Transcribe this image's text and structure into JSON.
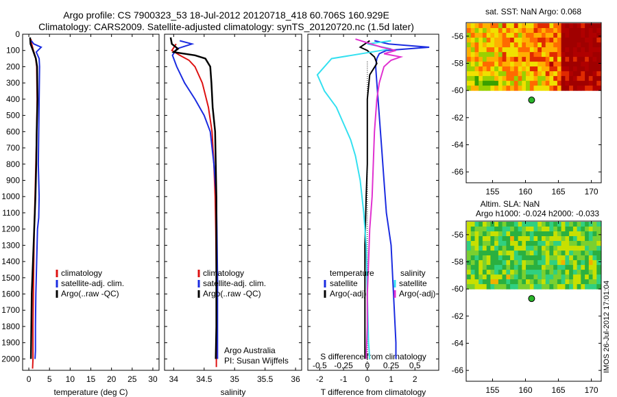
{
  "header": {
    "line1": "Argo profile: CS 7900323_53 18-Jul-2012 20120718_418 60.706S 160.929E",
    "line2": "Climatology: CARS2009. Satellite-adjusted climatology: synTS_20120720.nc (1.5d later)"
  },
  "colors": {
    "climatology": "#dd1111",
    "satellite": "#1a2be0",
    "argo": "#000000",
    "salinity_satellite": "#33e0f0",
    "salinity_argo": "#e030d0",
    "float_marker": "#2ab52a"
  },
  "depth_ticks": [
    "0",
    "100",
    "200",
    "300",
    "400",
    "500",
    "600",
    "700",
    "800",
    "900",
    "1000",
    "1100",
    "1200",
    "1300",
    "1400",
    "1500",
    "1600",
    "1700",
    "1800",
    "1900",
    "2000"
  ],
  "chart_data": [
    {
      "type": "line",
      "id": "temperature",
      "xlabel": "temperature (deg C)",
      "xlim": [
        -1.5,
        31.5
      ],
      "ylim": [
        2070,
        0
      ],
      "xticks": [
        "0",
        "5",
        "10",
        "15",
        "20",
        "25",
        "30"
      ],
      "legend": [
        "climatology",
        "satellite-adj. clim.",
        "Argo(..raw -QC)"
      ],
      "series": [
        {
          "name": "climatology",
          "points": [
            [
              0.5,
              30
            ],
            [
              0.7,
              60
            ],
            [
              1.1,
              100
            ],
            [
              1.6,
              140
            ],
            [
              1.9,
              200
            ],
            [
              2.0,
              400
            ],
            [
              1.9,
              600
            ],
            [
              1.7,
              800
            ],
            [
              1.5,
              1000
            ],
            [
              1.3,
              1200
            ],
            [
              1.2,
              1400
            ],
            [
              1.1,
              1600
            ],
            [
              1.0,
              1800
            ],
            [
              1.0,
              2000
            ],
            [
              0.9,
              2060
            ]
          ]
        },
        {
          "name": "satellite-adj. clim.",
          "points": [
            [
              0.6,
              40
            ],
            [
              1.2,
              60
            ],
            [
              3.0,
              80
            ],
            [
              1.8,
              110
            ],
            [
              2.5,
              150
            ],
            [
              2.6,
              200
            ],
            [
              2.5,
              400
            ],
            [
              2.4,
              600
            ],
            [
              2.3,
              800
            ],
            [
              2.5,
              1000
            ],
            [
              2.4,
              1130
            ],
            [
              2.1,
              1200
            ],
            [
              1.9,
              1400
            ],
            [
              1.7,
              1600
            ],
            [
              1.6,
              1800
            ],
            [
              1.6,
              1950
            ],
            [
              1.5,
              2000
            ]
          ]
        },
        {
          "name": "Argo(..raw -QC)",
          "points": [
            [
              0.3,
              20
            ],
            [
              0.4,
              60
            ],
            [
              1.0,
              100
            ],
            [
              1.7,
              150
            ],
            [
              2.0,
              200
            ],
            [
              2.1,
              400
            ],
            [
              1.9,
              600
            ],
            [
              1.8,
              800
            ],
            [
              1.6,
              1000
            ],
            [
              1.3,
              1200
            ],
            [
              1.0,
              1400
            ],
            [
              0.7,
              1600
            ],
            [
              0.6,
              1800
            ],
            [
              0.5,
              2000
            ]
          ]
        }
      ]
    },
    {
      "type": "line",
      "id": "salinity",
      "xlabel": "salinity",
      "xlim": [
        33.85,
        36.1
      ],
      "ylim": [
        2070,
        0
      ],
      "xticks": [
        "34",
        "34.5",
        "35",
        "35.5",
        "36"
      ],
      "legend": [
        "climatology",
        "satellite-adj. clim.",
        "Argo(..raw -QC)"
      ],
      "notes": [
        "Argo Australia",
        "PI: Susan Wijffels"
      ],
      "series": [
        {
          "name": "climatology",
          "points": [
            [
              34.04,
              60
            ],
            [
              33.97,
              100
            ],
            [
              34.1,
              130
            ],
            [
              34.25,
              160
            ],
            [
              34.35,
              200
            ],
            [
              34.47,
              300
            ],
            [
              34.57,
              450
            ],
            [
              34.63,
              600
            ],
            [
              34.66,
              800
            ],
            [
              34.68,
              1000
            ],
            [
              34.69,
              1200
            ],
            [
              34.7,
              1500
            ],
            [
              34.7,
              1800
            ],
            [
              34.7,
              2050
            ]
          ]
        },
        {
          "name": "satellite-adj. clim.",
          "points": [
            [
              34.1,
              40
            ],
            [
              34.3,
              60
            ],
            [
              34.05,
              90
            ],
            [
              33.98,
              130
            ],
            [
              34.05,
              200
            ],
            [
              34.18,
              300
            ],
            [
              34.35,
              400
            ],
            [
              34.5,
              500
            ],
            [
              34.6,
              600
            ],
            [
              34.66,
              800
            ],
            [
              34.7,
              1000
            ],
            [
              34.71,
              1200
            ],
            [
              34.72,
              1500
            ],
            [
              34.72,
              2000
            ]
          ]
        },
        {
          "name": "Argo(..raw -QC)",
          "points": [
            [
              33.95,
              20
            ],
            [
              33.97,
              60
            ],
            [
              34.07,
              90
            ],
            [
              34.0,
              110
            ],
            [
              34.35,
              130
            ],
            [
              34.52,
              150
            ],
            [
              34.6,
              200
            ],
            [
              34.62,
              300
            ],
            [
              34.64,
              450
            ],
            [
              34.68,
              600
            ],
            [
              34.69,
              800
            ],
            [
              34.7,
              1000
            ],
            [
              34.7,
              1200
            ],
            [
              34.7,
              1500
            ],
            [
              34.7,
              1800
            ],
            [
              34.69,
              2000
            ]
          ]
        }
      ]
    },
    {
      "type": "line",
      "id": "difference",
      "xlabel": "T difference from climatology",
      "top_label": "S difference from climatology",
      "xlim": [
        -2.5,
        3.0
      ],
      "ylim": [
        2070,
        0
      ],
      "xticks": [
        "-2",
        "-1",
        "0",
        "1",
        "2"
      ],
      "top_ticks": [
        "-0.5",
        "-0.25",
        "0",
        "0.25",
        "0.5"
      ],
      "legend_headers": [
        "temperature",
        "salinity"
      ],
      "legend_left": [
        "satellite",
        "Argo(-adj)"
      ],
      "legend_right": [
        "satellite",
        "Argo(-adj)"
      ],
      "series": [
        {
          "name": "temperature satellite",
          "points": [
            [
              0.3,
              40
            ],
            [
              0.9,
              60
            ],
            [
              2.6,
              80
            ],
            [
              0.8,
              100
            ],
            [
              0.5,
              120
            ],
            [
              0.4,
              150
            ],
            [
              0.35,
              200
            ],
            [
              0.4,
              300
            ],
            [
              0.5,
              500
            ],
            [
              0.6,
              700
            ],
            [
              0.7,
              900
            ],
            [
              0.8,
              1100
            ],
            [
              1.0,
              1300
            ],
            [
              1.1,
              1600
            ],
            [
              1.2,
              1900
            ],
            [
              1.2,
              2000
            ]
          ]
        },
        {
          "name": "temperature Argo(-adj)",
          "points": [
            [
              0.1,
              40
            ],
            [
              -0.1,
              60
            ],
            [
              -0.3,
              80
            ],
            [
              0.0,
              100
            ],
            [
              0.3,
              140
            ],
            [
              0.4,
              180
            ],
            [
              0.1,
              250
            ],
            [
              0.0,
              400
            ],
            [
              0.0,
              600
            ],
            [
              0.0,
              800
            ],
            [
              -0.05,
              1000
            ],
            [
              -0.1,
              1300
            ],
            [
              -0.1,
              1600
            ],
            [
              -0.1,
              1800
            ],
            [
              -0.1,
              2000
            ]
          ]
        },
        {
          "name": "salinity satellite",
          "points": [
            [
              1.0,
              40
            ],
            [
              0.0,
              60
            ],
            [
              1.0,
              90
            ],
            [
              -1.5,
              150
            ],
            [
              -2.1,
              250
            ],
            [
              -1.8,
              350
            ],
            [
              -1.3,
              450
            ],
            [
              -1.0,
              550
            ],
            [
              -0.7,
              650
            ],
            [
              -0.5,
              750
            ],
            [
              -0.3,
              900
            ],
            [
              -0.15,
              1100
            ],
            [
              -0.05,
              1300
            ],
            [
              0.0,
              1600
            ],
            [
              0.05,
              1900
            ],
            [
              0.1,
              2000
            ]
          ]
        },
        {
          "name": "salinity Argo(-adj)",
          "points": [
            [
              -0.5,
              30
            ],
            [
              0.6,
              80
            ],
            [
              1.2,
              100
            ],
            [
              0.7,
              120
            ],
            [
              1.4,
              140
            ],
            [
              1.0,
              160
            ],
            [
              0.7,
              200
            ],
            [
              0.5,
              300
            ],
            [
              0.4,
              400
            ],
            [
              0.3,
              600
            ],
            [
              0.25,
              800
            ],
            [
              0.2,
              1000
            ],
            [
              0.1,
              1200
            ],
            [
              0.05,
              1400
            ],
            [
              0.0,
              1600
            ],
            [
              0.0,
              1800
            ],
            [
              -0.05,
              2000
            ]
          ]
        }
      ]
    },
    {
      "type": "heatmap",
      "id": "sst_map",
      "title": "sat. SST: NaN Argo: 0.068",
      "xlim": [
        151,
        171.5
      ],
      "ylim": [
        -66.8,
        -55
      ],
      "xticks": [
        "155",
        "160",
        "165",
        "170"
      ],
      "yticks": [
        "-56",
        "-58",
        "-60",
        "-62",
        "-64",
        "-66"
      ],
      "grid_lat_range": [
        -60,
        -55
      ],
      "argo_position": [
        160.929,
        -60.706
      ]
    },
    {
      "type": "heatmap",
      "id": "sla_map",
      "title": "Altim. SLA: NaN",
      "subtitle": "Argo h1000: -0.024 h2000: -0.033",
      "xlim": [
        151,
        171.5
      ],
      "ylim": [
        -66.8,
        -55
      ],
      "xticks": [
        "155",
        "160",
        "165",
        "170"
      ],
      "yticks": [
        "-56",
        "-58",
        "-60",
        "-62",
        "-64",
        "-66"
      ],
      "grid_lat_range": [
        -60,
        -55
      ],
      "argo_position": [
        160.929,
        -60.706
      ]
    }
  ],
  "footer": {
    "stamp": "IMOS 26-Jul-2012 17:01:04"
  }
}
